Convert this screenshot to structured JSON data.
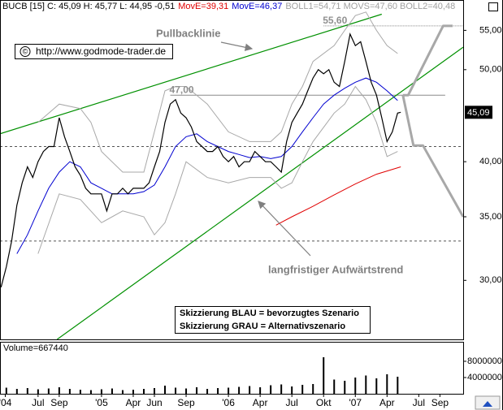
{
  "chart_data": {
    "type": "line",
    "log_scale": true,
    "header": [
      {
        "text": "BUCB [15] C: 45,09 H: 45,77 L: 44,95 -0,51",
        "color": "#000000"
      },
      {
        "text": "MovE=39,31",
        "color": "#e00000"
      },
      {
        "text": "MovE=46,37",
        "color": "#0000d0"
      },
      {
        "text": "BOLL1=54,71 MOVS=47,60 BOLL2=40,48",
        "color": "#a0a0a0"
      }
    ],
    "copyright": "©",
    "url": "http://www.godmode-trader.de",
    "xlim": [
      2.4,
      46.2
    ],
    "xticks": [
      {
        "value": 2.9,
        "label": "'04"
      },
      {
        "value": 6,
        "label": "Jul"
      },
      {
        "value": 8,
        "label": "Sep"
      },
      {
        "value": 12,
        "label": "'05"
      },
      {
        "value": 15,
        "label": "Apr"
      },
      {
        "value": 17,
        "label": "Jun"
      },
      {
        "value": 20,
        "label": "Sep"
      },
      {
        "value": 24,
        "label": "'06"
      },
      {
        "value": 27,
        "label": "Apr"
      },
      {
        "value": 30,
        "label": "Jul"
      },
      {
        "value": 33,
        "label": "Okt"
      },
      {
        "value": 36,
        "label": "'07"
      },
      {
        "value": 39,
        "label": "Apr"
      },
      {
        "value": 42,
        "label": "Jul"
      },
      {
        "value": 44,
        "label": "Sep"
      }
    ],
    "ylim": [
      26,
      59.2
    ],
    "yticks": [
      {
        "value": 55,
        "label": "55,00"
      },
      {
        "value": 50,
        "label": "50,00"
      },
      {
        "value": 40,
        "label": "40,00"
      },
      {
        "value": 35,
        "label": "35,00"
      },
      {
        "value": 30,
        "label": "30,00"
      }
    ],
    "series": [
      {
        "color": "#a8a8a8",
        "x": [
          6,
          8,
          10,
          11,
          12,
          14,
          16,
          17,
          18,
          19,
          20,
          22,
          24,
          26,
          28,
          29,
          30,
          31,
          32,
          34,
          35,
          36,
          37,
          38,
          39,
          40
        ],
        "values": [
          44,
          46,
          45.5,
          44,
          41,
          39,
          39,
          43,
          47.5,
          48,
          48,
          46,
          43,
          42,
          42,
          43,
          46,
          48,
          51,
          53,
          55,
          57,
          57.5,
          55,
          53,
          52
        ]
      },
      {
        "color": "#a8a8a8",
        "x": [
          6,
          8,
          10,
          12,
          14,
          16,
          17,
          18,
          19,
          20,
          22,
          24,
          26,
          28,
          29,
          30,
          31,
          32,
          34,
          35,
          36,
          37,
          38,
          39,
          40
        ],
        "values": [
          32,
          37,
          36.5,
          34.5,
          35.5,
          35,
          33.5,
          34.5,
          37,
          40,
          38.5,
          38,
          38.5,
          38.5,
          37.5,
          38,
          40,
          42,
          45,
          46,
          48,
          46.5,
          44,
          40.5,
          41
        ]
      },
      {
        "color": "#e00000",
        "x": [
          28.5,
          30,
          32,
          34,
          36,
          38,
          40.3
        ],
        "values": [
          34.3,
          35,
          35.9,
          36.9,
          37.9,
          38.8,
          39.5
        ]
      },
      {
        "color": "#0000d0",
        "x": [
          4,
          5,
          6,
          7,
          8,
          9,
          10,
          11,
          12,
          13,
          14,
          15,
          16,
          17,
          18,
          19,
          20,
          21,
          22,
          23,
          24,
          25,
          26,
          27,
          28,
          29,
          30,
          31,
          32,
          33,
          34,
          35,
          36,
          37,
          38,
          39,
          40
        ],
        "values": [
          32,
          33.5,
          35.5,
          37.5,
          39,
          40,
          39.5,
          38,
          37.5,
          37,
          37,
          37,
          37.2,
          37.8,
          39.5,
          41.5,
          42.5,
          42.8,
          42,
          41.5,
          41,
          40.7,
          40.4,
          40.5,
          40.3,
          40.5,
          41.5,
          43,
          44.5,
          46,
          47,
          47.8,
          48.5,
          49,
          48.5,
          47.5,
          46.4
        ]
      },
      {
        "color": "#000000",
        "x": [
          2.5,
          3,
          3.5,
          4,
          4.5,
          5,
          5.5,
          6,
          6.5,
          7,
          7.5,
          8,
          8.5,
          9,
          9.5,
          10,
          10.5,
          11,
          11.5,
          12,
          12.5,
          13,
          13.5,
          14,
          14.5,
          15,
          15.5,
          16,
          16.5,
          17,
          17.5,
          18,
          18.5,
          19,
          19.5,
          20,
          20.5,
          21,
          21.5,
          22,
          22.5,
          23,
          23.5,
          24,
          24.5,
          25,
          25.5,
          26,
          26.5,
          27,
          27.5,
          28,
          28.5,
          29,
          29.5,
          30,
          30.5,
          31,
          31.5,
          32,
          32.5,
          33,
          33.5,
          34,
          34.5,
          35,
          35.5,
          36,
          36.5,
          37,
          37.5,
          38,
          38.5,
          39,
          39.5,
          40,
          40.3
        ],
        "values": [
          29.5,
          31,
          33,
          36,
          38,
          39.5,
          38.5,
          40,
          41,
          41.5,
          41.5,
          44.5,
          42.5,
          41,
          39.5,
          38.7,
          37.5,
          37,
          37,
          37,
          35.5,
          37,
          37,
          37.5,
          37,
          37.5,
          37.5,
          37.5,
          38,
          39.5,
          41,
          44,
          46,
          46.5,
          45,
          44.5,
          43.5,
          42,
          41.5,
          41,
          41,
          41.5,
          40.5,
          40,
          40.5,
          39.5,
          40,
          40,
          41,
          40.5,
          40,
          40,
          39.5,
          39,
          42,
          44,
          45,
          46,
          47.5,
          49,
          50,
          49.5,
          50,
          48.5,
          48,
          51,
          54.5,
          53,
          53.5,
          51,
          48.5,
          47,
          44.5,
          42,
          43,
          45,
          45.09
        ]
      }
    ],
    "trendlines": [
      {
        "color": "#009000",
        "x": [
          2.4,
          38.5
        ],
        "values": [
          42.8,
          57.2
        ]
      },
      {
        "color": "#009000",
        "x": [
          7.8,
          46.2
        ],
        "values": [
          26.0,
          52.8
        ]
      }
    ],
    "levels": [
      {
        "value": 55.6,
        "label": "55,60",
        "x": [
          33,
          46.2
        ]
      },
      {
        "value": 47,
        "label": "47,00",
        "x": [
          18.5,
          44.5
        ]
      },
      {
        "value": 41.5,
        "x": [
          2.4,
          46.2
        ]
      },
      {
        "value": 33,
        "x": [
          2.4,
          46.2
        ]
      }
    ],
    "scenarios": [
      {
        "color": "#a8a8a8",
        "x": [
          40.5,
          41,
          44.3,
          45.2
        ],
        "values": [
          47,
          47,
          55.6,
          55.6
        ]
      },
      {
        "color": "#a8a8a8",
        "x": [
          40.5,
          41.5,
          42.4,
          46.2
        ],
        "values": [
          47,
          41.6,
          41.6,
          35
        ]
      }
    ],
    "annotations": [
      "Pullbacklinie",
      "langfristiger Aufwärtstrend"
    ],
    "info_box": [
      "Skizzierung BLAU = bevorzugtes Szenario",
      "Skizzierung GRAU = Alternativszenario"
    ],
    "last_price": {
      "value": 45.09,
      "label": "45,09"
    },
    "volume": {
      "title": "Volume=667440",
      "ylim": [
        0,
        12800000
      ],
      "yticks": [
        4000000,
        8000000
      ],
      "color": "#000000",
      "x": [
        3,
        4,
        5,
        6,
        7,
        8,
        9,
        10,
        11,
        12,
        13,
        14,
        15,
        16,
        17,
        18,
        19,
        20,
        21,
        22,
        23,
        24,
        25,
        26,
        27,
        28,
        29,
        30,
        31,
        32,
        33,
        34,
        35,
        36,
        37,
        38,
        39,
        40
      ],
      "values": [
        1500000,
        1200000,
        1400000,
        1100000,
        1300000,
        1600000,
        1200000,
        1000000,
        900000,
        1100000,
        1300000,
        900000,
        1000000,
        1200000,
        1400000,
        2000000,
        1500000,
        1300000,
        1600000,
        1200000,
        1400000,
        1500000,
        1700000,
        1900000,
        1600000,
        2100000,
        2300000,
        1800000,
        2200000,
        2400000,
        9000000,
        3500000,
        3200000,
        4000000,
        4500000,
        3800000,
        4800000,
        4200000
      ]
    }
  }
}
